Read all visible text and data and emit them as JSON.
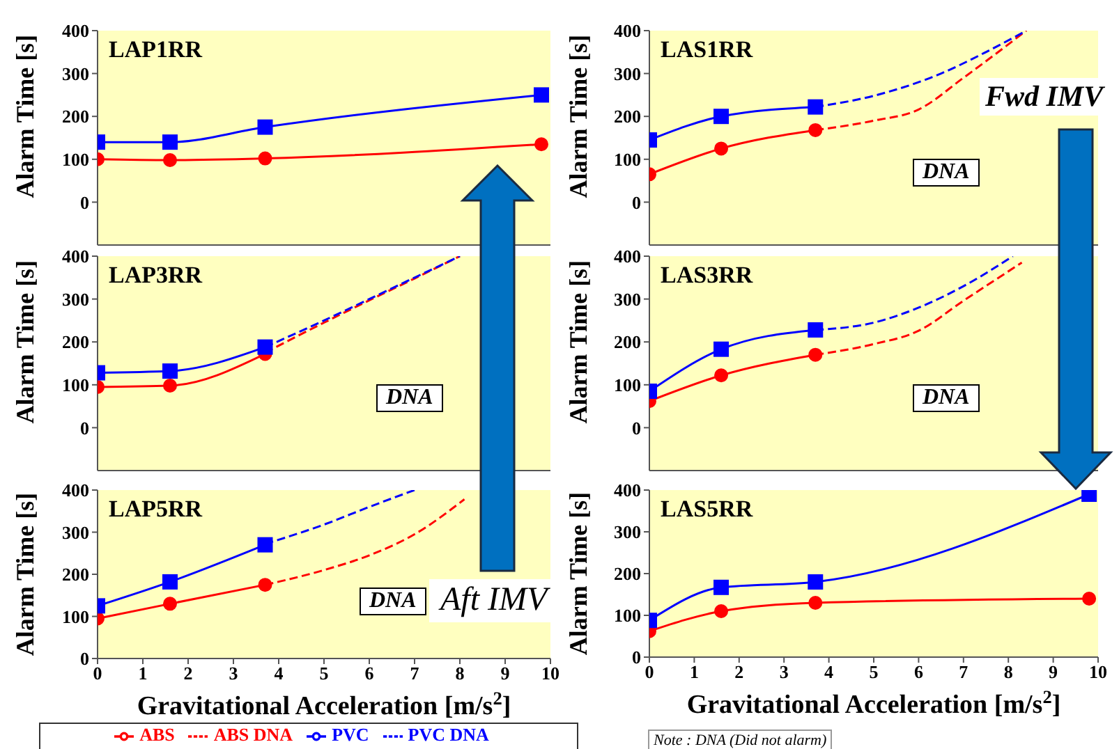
{
  "chart_data": [
    {
      "type": "line",
      "title": "LAP1RR",
      "ylabel": "Alarm Time [s]",
      "xlim": [
        0,
        10
      ],
      "xticks": [
        0,
        1,
        2,
        3,
        4,
        5,
        6,
        7,
        8,
        9,
        10
      ],
      "ylim": [
        -100,
        400
      ],
      "yticks": [
        0,
        100,
        200,
        300,
        400
      ],
      "tick_labels": "y",
      "grid": false,
      "legend": false,
      "series": [
        {
          "color": "#ff0000",
          "marker": "circle",
          "line_style": "solid",
          "x": [
            0,
            1.6,
            3.7,
            9.8
          ],
          "values": [
            100,
            98,
            102,
            135
          ]
        },
        {
          "color": "#0000ff",
          "marker": "square",
          "line_style": "solid",
          "x": [
            0,
            1.6,
            3.7,
            9.8
          ],
          "values": [
            140,
            140,
            175,
            250
          ]
        }
      ]
    },
    {
      "type": "line",
      "title": "LAS1RR",
      "ylabel": "Alarm Time [s]",
      "xlim": [
        0,
        10
      ],
      "xticks": [
        0,
        1,
        2,
        3,
        4,
        5,
        6,
        7,
        8,
        9,
        10
      ],
      "ylim": [
        -100,
        400
      ],
      "yticks": [
        0,
        100,
        200,
        300,
        400
      ],
      "tick_labels": "y",
      "grid": false,
      "legend": false,
      "annotations": [
        "DNA",
        "Fwd IMV"
      ],
      "series": [
        {
          "color": "#ff0000",
          "marker": "circle",
          "line_style": "solid",
          "x": [
            0,
            1.6,
            3.7
          ],
          "values": [
            65,
            125,
            168
          ]
        },
        {
          "color": "#0000ff",
          "marker": "square",
          "line_style": "solid",
          "x": [
            0,
            1.6,
            3.7
          ],
          "values": [
            145,
            200,
            222
          ]
        },
        {
          "color": "#ff0000",
          "marker": "none",
          "line_style": "dashed",
          "x": [
            3.7,
            5,
            6,
            7,
            8.4
          ],
          "values": [
            168,
            190,
            216,
            290,
            400
          ]
        },
        {
          "color": "#0000ff",
          "marker": "none",
          "line_style": "dashed",
          "x": [
            3.7,
            5,
            6.5,
            7.5,
            8.4
          ],
          "values": [
            222,
            248,
            300,
            350,
            400
          ]
        }
      ]
    },
    {
      "type": "line",
      "title": "LAP3RR",
      "ylabel": "Alarm Time [s]",
      "xlim": [
        0,
        10
      ],
      "xticks": [
        0,
        1,
        2,
        3,
        4,
        5,
        6,
        7,
        8,
        9,
        10
      ],
      "ylim": [
        -100,
        400
      ],
      "yticks": [
        0,
        100,
        200,
        300,
        400
      ],
      "tick_labels": "y",
      "grid": false,
      "legend": false,
      "annotations": [
        "DNA"
      ],
      "series": [
        {
          "color": "#ff0000",
          "marker": "circle",
          "line_style": "solid",
          "x": [
            0,
            1.6,
            3.7
          ],
          "values": [
            95,
            98,
            172
          ]
        },
        {
          "color": "#0000ff",
          "marker": "square",
          "line_style": "solid",
          "x": [
            0,
            1.6,
            3.7
          ],
          "values": [
            128,
            132,
            188
          ]
        },
        {
          "color": "#ff0000",
          "marker": "none",
          "line_style": "dashed",
          "x": [
            3.7,
            5,
            6,
            7,
            8
          ],
          "values": [
            175,
            245,
            297,
            348,
            400
          ]
        },
        {
          "color": "#0000ff",
          "marker": "none",
          "line_style": "dashed",
          "x": [
            3.7,
            5,
            6,
            7,
            8
          ],
          "values": [
            188,
            250,
            300,
            350,
            400
          ]
        }
      ]
    },
    {
      "type": "line",
      "title": "LAS3RR",
      "ylabel": "Alarm Time [s]",
      "xlim": [
        0,
        10
      ],
      "xticks": [
        0,
        1,
        2,
        3,
        4,
        5,
        6,
        7,
        8,
        9,
        10
      ],
      "ylim": [
        -100,
        400
      ],
      "yticks": [
        0,
        100,
        200,
        300,
        400
      ],
      "tick_labels": "y",
      "grid": false,
      "legend": false,
      "annotations": [
        "DNA"
      ],
      "series": [
        {
          "color": "#ff0000",
          "marker": "circle",
          "line_style": "solid",
          "x": [
            0,
            1.6,
            3.7
          ],
          "values": [
            62,
            122,
            170
          ]
        },
        {
          "color": "#0000ff",
          "marker": "square",
          "line_style": "solid",
          "x": [
            0,
            1.6,
            3.7
          ],
          "values": [
            85,
            183,
            228
          ]
        },
        {
          "color": "#ff0000",
          "marker": "none",
          "line_style": "dashed",
          "x": [
            3.7,
            5,
            6,
            7,
            8.3
          ],
          "values": [
            170,
            195,
            226,
            296,
            385
          ]
        },
        {
          "color": "#0000ff",
          "marker": "none",
          "line_style": "dashed",
          "x": [
            3.7,
            5,
            6,
            7,
            8.1
          ],
          "values": [
            228,
            245,
            280,
            330,
            400
          ]
        }
      ]
    },
    {
      "type": "line",
      "title": "LAP5RR",
      "ylabel": "Alarm Time [s]",
      "xlabel": "Gravitational Acceleration [m/s$^{2}$]",
      "xlim": [
        0,
        10
      ],
      "xticks": [
        0,
        1,
        2,
        3,
        4,
        5,
        6,
        7,
        8,
        9,
        10
      ],
      "ylim": [
        0,
        400
      ],
      "yticks": [
        0,
        100,
        200,
        300,
        400
      ],
      "grid": false,
      "legend": "bottom",
      "annotations": [
        "DNA",
        "Aft IMV"
      ],
      "series": [
        {
          "name": "ABS",
          "color": "#ff0000",
          "marker": "circle",
          "line_style": "solid",
          "x": [
            0,
            1.6,
            3.7
          ],
          "values": [
            95,
            130,
            175
          ]
        },
        {
          "name": "PVC",
          "color": "#0000ff",
          "marker": "square",
          "line_style": "solid",
          "x": [
            0,
            1.6,
            3.7
          ],
          "values": [
            125,
            182,
            270
          ]
        },
        {
          "name": "ABS DNA",
          "color": "#ff0000",
          "marker": "none",
          "line_style": "dashed",
          "x": [
            3.7,
            5,
            6,
            7,
            8.1
          ],
          "values": [
            175,
            210,
            245,
            295,
            378
          ]
        },
        {
          "name": "PVC DNA",
          "color": "#0000ff",
          "marker": "none",
          "line_style": "dashed",
          "x": [
            3.7,
            5,
            6,
            7
          ],
          "values": [
            272,
            318,
            360,
            400
          ]
        }
      ]
    },
    {
      "type": "line",
      "title": "LAS5RR",
      "ylabel": "Alarm Time [s]",
      "xlabel": "Gravitational Acceleration [m/s$^{2}$]",
      "xlim": [
        0,
        10
      ],
      "xticks": [
        0,
        1,
        2,
        3,
        4,
        5,
        6,
        7,
        8,
        9,
        10
      ],
      "ylim": [
        0,
        400
      ],
      "yticks": [
        0,
        100,
        200,
        300,
        400
      ],
      "grid": false,
      "legend": false,
      "annotations": [
        "Note : DNA (Did not alarm)"
      ],
      "series": [
        {
          "color": "#ff0000",
          "marker": "circle",
          "line_style": "solid",
          "x": [
            0,
            1.6,
            3.7,
            9.8
          ],
          "values": [
            62,
            110,
            130,
            140
          ]
        },
        {
          "color": "#0000ff",
          "marker": "square",
          "line_style": "solid",
          "x": [
            0,
            1.6,
            3.7,
            9.8
          ],
          "values": [
            88,
            167,
            180,
            390
          ]
        }
      ]
    }
  ]
}
